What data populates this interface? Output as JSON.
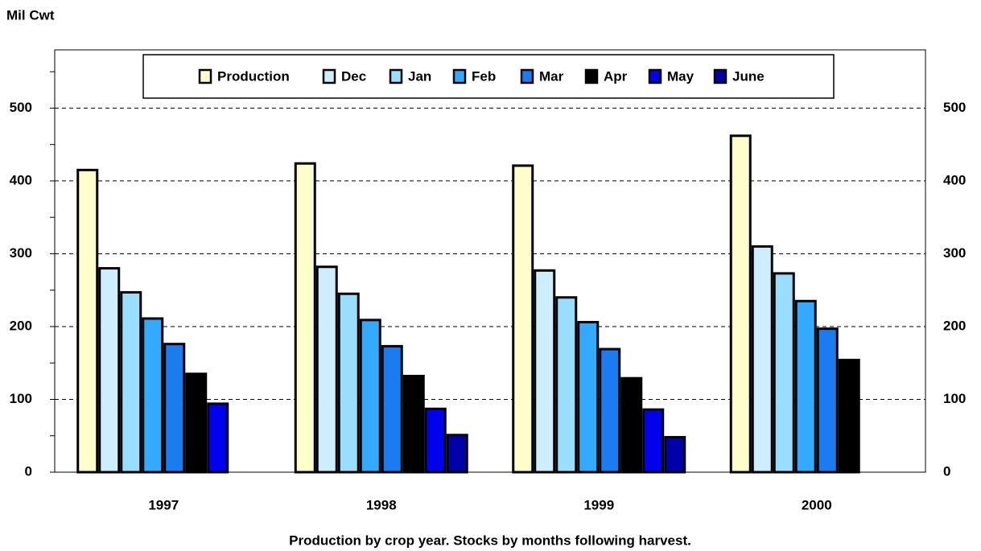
{
  "chart_data": {
    "type": "bar",
    "y_axis_label": "Mil Cwt",
    "x_axis_label": "Production by crop year.  Stocks by months following harvest.",
    "categories": [
      "1997",
      "1998",
      "1999",
      "2000"
    ],
    "series": [
      {
        "name": "Production",
        "color": "#ffffcc",
        "values": [
          415,
          424,
          421,
          462
        ]
      },
      {
        "name": "Dec",
        "color": "#cceeff",
        "values": [
          280,
          282,
          277,
          310
        ]
      },
      {
        "name": "Jan",
        "color": "#99ddff",
        "values": [
          247,
          245,
          240,
          273
        ]
      },
      {
        "name": "Feb",
        "color": "#33aaff",
        "values": [
          211,
          209,
          206,
          235
        ]
      },
      {
        "name": "Mar",
        "color": "#1a7cf0",
        "values": [
          176,
          173,
          169,
          197
        ]
      },
      {
        "name": "Apr",
        "color": "#000000",
        "values": [
          135,
          132,
          129,
          154
        ]
      },
      {
        "name": "May",
        "color": "#0000ee",
        "values": [
          94,
          87,
          86,
          null
        ]
      },
      {
        "name": "June",
        "color": "#0000aa",
        "values": [
          null,
          51,
          48,
          null
        ]
      }
    ],
    "ylim": [
      0,
      580
    ],
    "yticks": [
      0,
      100,
      200,
      300,
      400,
      500
    ],
    "y_minor_ticks": [
      50,
      150,
      250,
      350,
      450,
      550
    ],
    "grid": true
  }
}
